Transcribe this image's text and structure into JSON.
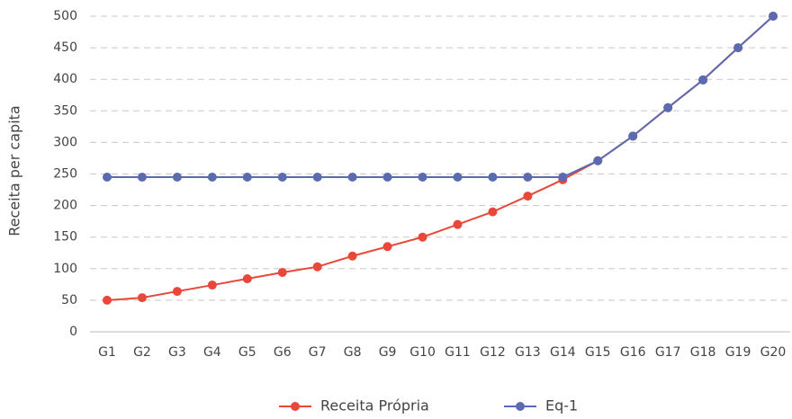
{
  "chart_data": {
    "type": "line",
    "y_label": "Receita per capita",
    "categories": [
      "G1",
      "G2",
      "G3",
      "G4",
      "G5",
      "G6",
      "G7",
      "G8",
      "G9",
      "G10",
      "G11",
      "G12",
      "G13",
      "G14",
      "G15",
      "G16",
      "G17",
      "G18",
      "G19",
      "G20"
    ],
    "series": [
      {
        "name": "Receita Própria",
        "color": "#e8473a",
        "values": [
          50,
          54,
          64,
          74,
          84,
          94,
          103,
          120,
          135,
          150,
          170,
          190,
          215,
          241,
          271,
          310,
          355,
          399,
          450,
          500
        ]
      },
      {
        "name": "Eq-1",
        "color": "#5b6bb0",
        "values": [
          245,
          245,
          245,
          245,
          245,
          245,
          245,
          245,
          245,
          245,
          245,
          245,
          245,
          245,
          271,
          310,
          355,
          399,
          450,
          500
        ]
      }
    ],
    "ylim": [
      0,
      500
    ],
    "yticks": [
      0,
      50,
      100,
      150,
      200,
      250,
      300,
      350,
      400,
      450,
      500
    ],
    "grid": true,
    "legend": "bottom"
  }
}
